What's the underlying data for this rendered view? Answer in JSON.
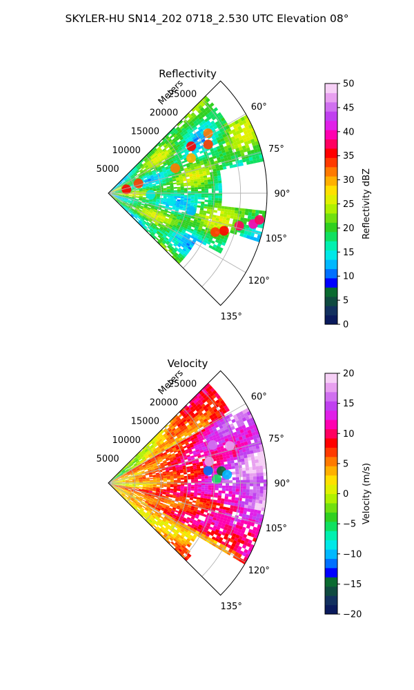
{
  "figure": {
    "title": "SKYLER-HU  SN14_202  0718_2.530 UTC Elevation 08°"
  },
  "chart_data": [
    {
      "type": "heatmap",
      "projection": "polar-sector",
      "title": "Reflectivity",
      "radial_label": "Meters",
      "radial_ticks": [
        5000,
        10000,
        15000,
        20000,
        25000
      ],
      "radial_tick_labels": [
        "5000",
        "10000",
        "15000",
        "20000",
        "25000"
      ],
      "rlim": [
        0,
        30000
      ],
      "theta_ticks": [
        60,
        75,
        90,
        105,
        120,
        135
      ],
      "theta_tick_labels": [
        "60°",
        "75°",
        "90°",
        "105°",
        "120°",
        "135°"
      ],
      "theta_range": [
        45,
        135
      ],
      "grid": true,
      "colorbar": {
        "label": "Reflectivity dBZ",
        "range": [
          0,
          50
        ],
        "ticks": [
          0,
          5,
          10,
          15,
          20,
          25,
          30,
          35,
          40,
          45,
          50
        ],
        "tick_labels": [
          "0",
          "5",
          "10",
          "15",
          "20",
          "25",
          "30",
          "35",
          "40",
          "45",
          "50"
        ],
        "colors": [
          "#0a1a5c",
          "#12305e",
          "#0f4a40",
          "#0a6a30",
          "#0000ff",
          "#0070ff",
          "#00b8ff",
          "#00e8e8",
          "#00f0b0",
          "#10e060",
          "#30d020",
          "#70e010",
          "#b0f000",
          "#e0f000",
          "#ffe000",
          "#ffb000",
          "#ff7a00",
          "#ff3a00",
          "#ff0000",
          "#ff0060",
          "#ff00b0",
          "#e020e8",
          "#c040f0",
          "#d070f0",
          "#e8a0f0",
          "#f6d0f6"
        ]
      },
      "cells": [
        {
          "theta": 60.5,
          "r": 18000,
          "value": 36
        },
        {
          "theta": 59,
          "r": 22000,
          "value": 31
        },
        {
          "theta": 64,
          "r": 21000,
          "value": 34
        },
        {
          "theta": 67,
          "r": 17000,
          "value": 30
        },
        {
          "theta": 69.5,
          "r": 13500,
          "value": 32
        },
        {
          "theta": 72,
          "r": 6000,
          "value": 33
        },
        {
          "theta": 78,
          "r": 3500,
          "value": 35
        },
        {
          "theta": 104,
          "r": 25500,
          "value": 38
        },
        {
          "theta": 102,
          "r": 28000,
          "value": 40
        },
        {
          "theta": 108,
          "r": 23000,
          "value": 36
        },
        {
          "theta": 110,
          "r": 21500,
          "value": 33
        },
        {
          "theta": 100,
          "r": 29000,
          "value": 37
        },
        {
          "theta": 97,
          "r": 12000,
          "value": 14
        },
        {
          "theta": 102,
          "r": 16000,
          "value": 13
        },
        {
          "theta": 92,
          "r": 8000,
          "value": 14
        }
      ]
    },
    {
      "type": "heatmap",
      "projection": "polar-sector",
      "title": "Velocity",
      "radial_label": "Meters",
      "radial_ticks": [
        5000,
        10000,
        15000,
        20000,
        25000
      ],
      "radial_tick_labels": [
        "5000",
        "10000",
        "15000",
        "20000",
        "25000"
      ],
      "rlim": [
        0,
        30000
      ],
      "theta_ticks": [
        60,
        75,
        90,
        105,
        120,
        135
      ],
      "theta_tick_labels": [
        "60°",
        "75°",
        "90°",
        "105°",
        "120°",
        "135°"
      ],
      "theta_range": [
        45,
        135
      ],
      "grid": true,
      "colorbar": {
        "label": "Velocity (m/s)",
        "range": [
          -20,
          20
        ],
        "ticks": [
          -20,
          -15,
          -10,
          -5,
          0,
          5,
          10,
          15,
          20
        ],
        "tick_labels": [
          "−20",
          "−15",
          "−10",
          "−5",
          "0",
          "5",
          "10",
          "15",
          "20"
        ],
        "colors": [
          "#0a1a5c",
          "#12305e",
          "#0f4a40",
          "#0a6a30",
          "#0000ff",
          "#0070ff",
          "#00b8ff",
          "#00e8e8",
          "#00f0b0",
          "#10e060",
          "#30d020",
          "#70e010",
          "#b0f000",
          "#e0f000",
          "#ffe000",
          "#ffb000",
          "#ff7a00",
          "#ff3a00",
          "#ff0000",
          "#ff0060",
          "#ff00b0",
          "#e020e8",
          "#c040f0",
          "#d070f0",
          "#e8a0f0",
          "#f6d0f6"
        ]
      },
      "cells": [
        {
          "theta": 84,
          "r": 21500,
          "value": -14
        },
        {
          "theta": 83,
          "r": 19000,
          "value": -12
        },
        {
          "theta": 86,
          "r": 22500,
          "value": -10
        },
        {
          "theta": 88,
          "r": 20500,
          "value": -6
        },
        {
          "theta": 78,
          "r": 19500,
          "value": 17
        },
        {
          "theta": 70,
          "r": 21000,
          "value": 16
        },
        {
          "theta": 73,
          "r": 24000,
          "value": 18
        }
      ]
    }
  ]
}
